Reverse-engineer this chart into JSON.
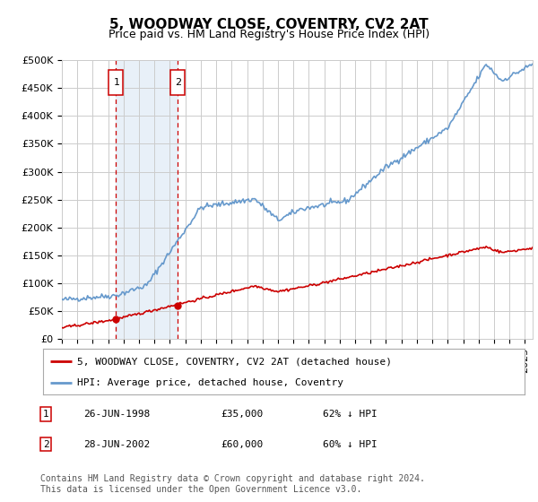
{
  "title": "5, WOODWAY CLOSE, COVENTRY, CV2 2AT",
  "subtitle": "Price paid vs. HM Land Registry's House Price Index (HPI)",
  "ylim": [
    0,
    500000
  ],
  "yticks": [
    0,
    50000,
    100000,
    150000,
    200000,
    250000,
    300000,
    350000,
    400000,
    450000,
    500000
  ],
  "ytick_labels": [
    "£0",
    "£50K",
    "£100K",
    "£150K",
    "£200K",
    "£250K",
    "£300K",
    "£350K",
    "£400K",
    "£450K",
    "£500K"
  ],
  "xlim_start": 1995.0,
  "xlim_end": 2025.5,
  "sale1_date": 1998.484,
  "sale1_price": 35000,
  "sale2_date": 2002.484,
  "sale2_price": 60000,
  "red_line_color": "#cc0000",
  "blue_line_color": "#6699cc",
  "shade_color": "#e8f0f8",
  "marker_box_color": "#cc0000",
  "grid_color": "#cccccc",
  "background_color": "#ffffff",
  "legend_label_red": "5, WOODWAY CLOSE, COVENTRY, CV2 2AT (detached house)",
  "legend_label_blue": "HPI: Average price, detached house, Coventry",
  "transaction1_label": "1",
  "transaction1_date": "26-JUN-1998",
  "transaction1_price": "£35,000",
  "transaction1_hpi": "62% ↓ HPI",
  "transaction2_label": "2",
  "transaction2_date": "28-JUN-2002",
  "transaction2_price": "£60,000",
  "transaction2_hpi": "60% ↓ HPI",
  "footnote": "Contains HM Land Registry data © Crown copyright and database right 2024.\nThis data is licensed under the Open Government Licence v3.0.",
  "title_fontsize": 11,
  "subtitle_fontsize": 9,
  "tick_fontsize": 8,
  "legend_fontsize": 8,
  "table_fontsize": 8,
  "footnote_fontsize": 7
}
